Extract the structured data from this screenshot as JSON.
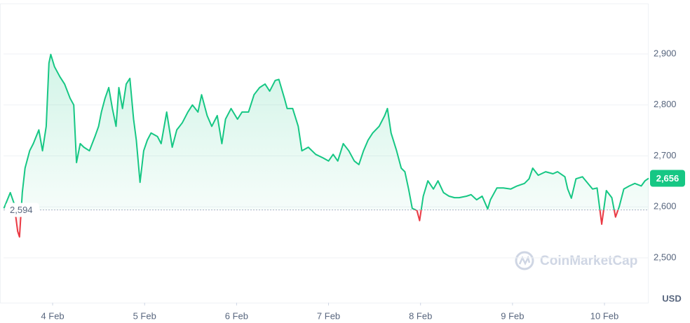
{
  "chart_data": {
    "type": "line",
    "x": [
      3.47,
      3.54,
      3.58,
      3.62,
      3.64,
      3.67,
      3.7,
      3.75,
      3.79,
      3.85,
      3.89,
      3.93,
      3.96,
      3.98,
      4.02,
      4.08,
      4.13,
      4.19,
      4.23,
      4.26,
      4.3,
      4.34,
      4.4,
      4.46,
      4.5,
      4.53,
      4.57,
      4.61,
      4.65,
      4.69,
      4.72,
      4.76,
      4.8,
      4.84,
      4.88,
      4.91,
      4.95,
      4.99,
      5.03,
      5.07,
      5.14,
      5.18,
      5.24,
      5.3,
      5.35,
      5.41,
      5.47,
      5.52,
      5.58,
      5.62,
      5.68,
      5.73,
      5.79,
      5.84,
      5.88,
      5.94,
      6.01,
      6.06,
      6.13,
      6.19,
      6.25,
      6.31,
      6.36,
      6.42,
      6.46,
      6.52,
      6.55,
      6.61,
      6.67,
      6.71,
      6.78,
      6.86,
      6.94,
      7.0,
      7.05,
      7.1,
      7.16,
      7.22,
      7.28,
      7.33,
      7.38,
      7.43,
      7.48,
      7.55,
      7.61,
      7.64,
      7.68,
      7.74,
      7.79,
      7.83,
      7.87,
      7.91,
      7.96,
      7.99,
      8.03,
      8.08,
      8.14,
      8.19,
      8.25,
      8.31,
      8.37,
      8.42,
      8.5,
      8.55,
      8.61,
      8.67,
      8.73,
      8.76,
      8.83,
      8.9,
      8.98,
      9.05,
      9.13,
      9.18,
      9.22,
      9.28,
      9.36,
      9.44,
      9.49,
      9.57,
      9.6,
      9.64,
      9.69,
      9.76,
      9.82,
      9.87,
      9.92,
      9.97,
      10.02,
      10.08,
      10.12,
      10.16,
      10.21,
      10.27,
      10.33,
      10.4,
      10.44,
      10.48
    ],
    "values": [
      2597,
      2628,
      2607,
      2552,
      2541,
      2628,
      2676,
      2710,
      2724,
      2751,
      2710,
      2758,
      2882,
      2899,
      2875,
      2855,
      2841,
      2813,
      2800,
      2687,
      2724,
      2717,
      2710,
      2738,
      2758,
      2786,
      2813,
      2834,
      2793,
      2758,
      2834,
      2793,
      2841,
      2852,
      2772,
      2731,
      2648,
      2710,
      2731,
      2745,
      2738,
      2724,
      2786,
      2717,
      2751,
      2765,
      2786,
      2800,
      2786,
      2820,
      2779,
      2758,
      2779,
      2724,
      2772,
      2793,
      2772,
      2786,
      2786,
      2820,
      2834,
      2841,
      2827,
      2848,
      2850,
      2813,
      2793,
      2793,
      2758,
      2710,
      2717,
      2703,
      2696,
      2690,
      2703,
      2690,
      2724,
      2710,
      2690,
      2683,
      2710,
      2731,
      2745,
      2758,
      2779,
      2793,
      2745,
      2710,
      2676,
      2669,
      2635,
      2597,
      2593,
      2573,
      2621,
      2651,
      2635,
      2651,
      2628,
      2621,
      2618,
      2618,
      2621,
      2624,
      2614,
      2621,
      2596,
      2614,
      2637,
      2637,
      2635,
      2641,
      2646,
      2655,
      2676,
      2662,
      2669,
      2665,
      2669,
      2659,
      2635,
      2617,
      2655,
      2659,
      2646,
      2635,
      2637,
      2566,
      2632,
      2618,
      2580,
      2600,
      2635,
      2641,
      2646,
      2641,
      2651,
      2656
    ],
    "color": "#16c784",
    "negative_color": "#ea3943",
    "baseline": {
      "value": 2594,
      "label": "2,594"
    },
    "last_price": {
      "value": 2656,
      "label": "2,656"
    },
    "xlim": [
      3.466,
      10.48
    ],
    "xticks": [
      {
        "value": 4,
        "label": "4 Feb"
      },
      {
        "value": 5,
        "label": "5 Feb"
      },
      {
        "value": 6,
        "label": "6 Feb"
      },
      {
        "value": 7,
        "label": "7 Feb"
      },
      {
        "value": 8,
        "label": "8 Feb"
      },
      {
        "value": 9,
        "label": "9 Feb"
      },
      {
        "value": 10,
        "label": "10 Feb"
      }
    ],
    "ylim": [
      2412,
      2999
    ],
    "yticks": [
      {
        "value": 2500,
        "label": "2,500"
      },
      {
        "value": 2600,
        "label": "2,600"
      },
      {
        "value": 2700,
        "label": "2,700"
      },
      {
        "value": 2800,
        "label": "2,800"
      },
      {
        "value": 2900,
        "label": "2,900"
      }
    ],
    "y_unit": "USD",
    "watermark": "CoinMarketCap",
    "grid": true
  }
}
